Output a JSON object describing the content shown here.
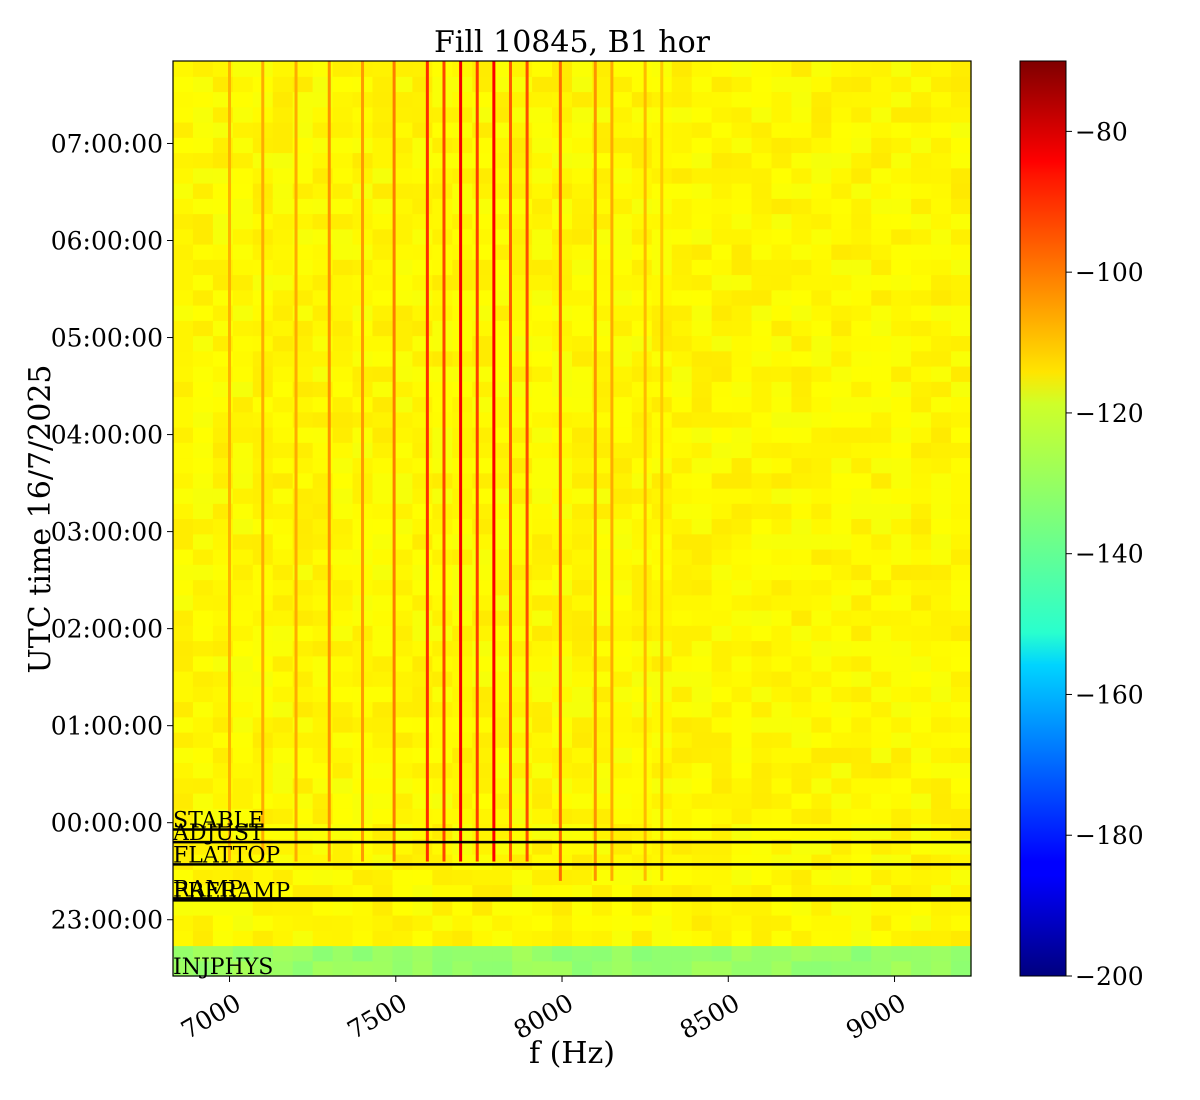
{
  "chart_data": {
    "type": "heatmap",
    "title": "Fill 10845, B1 hor",
    "xlabel": "f (Hz)",
    "ylabel": "UTC time 16/7/2025",
    "xlim": [
      6830,
      9230
    ],
    "ylim_hours": [
      -1.58,
      7.85
    ],
    "x_ticks": [
      {
        "value": 7000,
        "label": "7000"
      },
      {
        "value": 7500,
        "label": "7500"
      },
      {
        "value": 8000,
        "label": "8000"
      },
      {
        "value": 8500,
        "label": "8500"
      },
      {
        "value": 9000,
        "label": "9000"
      }
    ],
    "y_ticks": [
      {
        "value": -1,
        "label": "23:00:00"
      },
      {
        "value": 0,
        "label": "00:00:00"
      },
      {
        "value": 1,
        "label": "01:00:00"
      },
      {
        "value": 2,
        "label": "02:00:00"
      },
      {
        "value": 3,
        "label": "03:00:00"
      },
      {
        "value": 4,
        "label": "04:00:00"
      },
      {
        "value": 5,
        "label": "05:00:00"
      },
      {
        "value": 6,
        "label": "06:00:00"
      },
      {
        "value": 7,
        "label": "07:00:00"
      }
    ],
    "colormap": "jet",
    "colorbar": {
      "vmin": -200,
      "vmax": -70,
      "ticks": [
        {
          "value": -80,
          "label": "−80"
        },
        {
          "value": -100,
          "label": "−100"
        },
        {
          "value": -120,
          "label": "−120"
        },
        {
          "value": -140,
          "label": "−140"
        },
        {
          "value": -160,
          "label": "−160"
        },
        {
          "value": -180,
          "label": "−180"
        },
        {
          "value": -200,
          "label": "−200"
        }
      ]
    },
    "background_level": -118,
    "phase_markers": [
      {
        "label": "STABLE",
        "time": -0.07
      },
      {
        "label": "ADJUST",
        "time": -0.2
      },
      {
        "label": "FLATTOP",
        "time": -0.43
      },
      {
        "label": "RAMP",
        "time": -0.78
      },
      {
        "label": "PRERAMP",
        "time": -0.8
      },
      {
        "label": "INJPHYS",
        "time": null
      }
    ],
    "spectral_lines": [
      {
        "f": 7000,
        "t_start": -0.4,
        "level": -109
      },
      {
        "f": 7100,
        "t_start": -0.4,
        "level": -108
      },
      {
        "f": 7200,
        "t_start": -0.4,
        "level": -108
      },
      {
        "f": 7300,
        "t_start": -0.4,
        "level": -105
      },
      {
        "f": 7400,
        "t_start": -0.4,
        "level": -106
      },
      {
        "f": 7495,
        "t_start": -0.4,
        "level": -102
      },
      {
        "f": 7595,
        "t_start": -0.4,
        "level": -92
      },
      {
        "f": 7645,
        "t_start": -0.4,
        "level": -95
      },
      {
        "f": 7695,
        "t_start": -0.4,
        "level": -85
      },
      {
        "f": 7745,
        "t_start": -0.4,
        "level": -94
      },
      {
        "f": 7795,
        "t_start": -0.4,
        "level": -86
      },
      {
        "f": 7845,
        "t_start": -0.4,
        "level": -98
      },
      {
        "f": 7895,
        "t_start": -0.4,
        "level": -96
      },
      {
        "f": 7995,
        "t_start": -0.6,
        "level": -100
      },
      {
        "f": 8100,
        "t_start": -0.6,
        "level": -105
      },
      {
        "f": 8150,
        "t_start": -0.6,
        "level": -108
      },
      {
        "f": 8250,
        "t_start": -0.6,
        "level": -110
      },
      {
        "f": 8300,
        "t_start": -0.6,
        "level": -112
      }
    ]
  }
}
